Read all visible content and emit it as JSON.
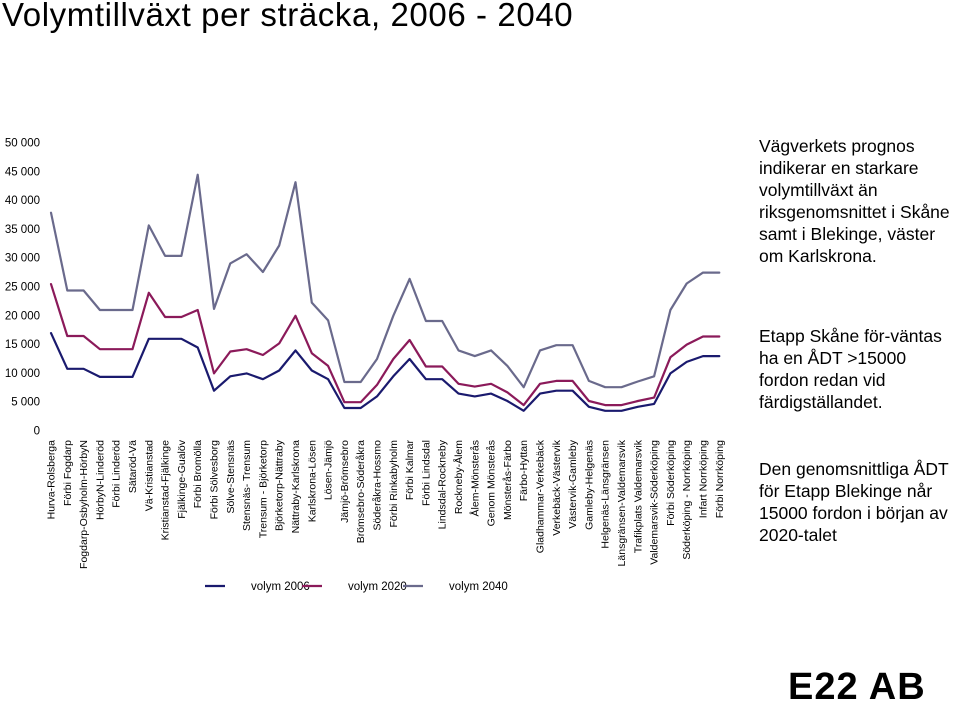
{
  "title": "Volymtillväxt per sträcka, 2006 - 2040",
  "notes": {
    "p1": "Vägverkets prognos indikerar en starkare volymtillväxt än riksgenomsnittet i Skåne samt i Blekinge, väster om Karlskrona.",
    "p2": "Etapp Skåne för-väntas ha en ÅDT >15000 fordon redan vid färdigställandet.",
    "p3": "Den genomsnittliga ÅDT för Etapp Blekinge når 15000 fordon i början av 2020-talet"
  },
  "brand": "E22 AB",
  "chart_data": {
    "type": "line",
    "title": "",
    "xlabel": "",
    "ylabel": "",
    "ylim": [
      0,
      50000
    ],
    "yticks": [
      0,
      5000,
      10000,
      15000,
      20000,
      25000,
      30000,
      35000,
      40000,
      45000,
      50000
    ],
    "ytick_labels": [
      "0",
      "5 000",
      "10 000",
      "15 000",
      "20 000",
      "25 000",
      "30 000",
      "35 000",
      "40 000",
      "45 000",
      "50 000"
    ],
    "grid": false,
    "legend": "bottom",
    "categories": [
      "Hurva-Rolsberga",
      "Förbi Fogdarp",
      "Fogdarp-Osbyholm-HörbyN",
      "HörbyN-Linderöd",
      "Förbi Linderöd",
      "Sätaröd-Vä",
      "Vä-Kristianstad",
      "Kristianstad-Fjälkinge",
      "Fjälkinge-Gualöv",
      "Förbi Bromölla",
      "Förbi Sölvesborg",
      "Sölve-Stensnäs",
      "Stensnäs- Trensum",
      "Trensum - Björketorp",
      "Björketorp-Nättraby",
      "Nättraby-Karlskrona",
      "Karlskrona-Lösen",
      "Lösen-Jämjö",
      "Jämjö-Brömsebro",
      "Brömsebro-Söderåkra",
      "Söderåkra-Hossmo",
      "Förbi Rinkabyholm",
      "Förbi Kalmar",
      "Förbi Lindsdal",
      "Lindsdal-Rockneby",
      "Rockneby-Ålem",
      "Ålem-Mönsterås",
      "Genom Mönsterås",
      "Mönsterås-Färbo",
      "Färbo-Hyttan",
      "Gladhammar-Verkebäck",
      "Verkebäck-Västervik",
      "Västervik-Gamleby",
      "Gamleby-Helgenäs",
      "Helgenäs-Länsgränsen",
      "Länsgränsen-Valdemarsvik",
      "Trafikplats Valdemarsvik",
      "Valdemarsvik-Söderköping",
      "Förbi Söderköping",
      "Söderköping - Norrköping",
      "Infart Norrköping",
      "Förbi Norrköping"
    ],
    "series": [
      {
        "name": "volym 2006",
        "color": "#1a1a6e",
        "values": [
          17000,
          10800,
          10800,
          9400,
          9400,
          9400,
          16000,
          16000,
          16000,
          14500,
          7000,
          9500,
          10000,
          9000,
          10500,
          14000,
          10500,
          9000,
          4000,
          4000,
          6000,
          9500,
          12500,
          9000,
          9000,
          6500,
          6000,
          6500,
          5200,
          3500,
          6500,
          7000,
          7000,
          4200,
          3500,
          3500,
          4200,
          4700,
          10000,
          12000,
          13000,
          13000
        ]
      },
      {
        "name": "volym 2020",
        "color": "#8b1a5a",
        "values": [
          25500,
          16500,
          16500,
          14200,
          14200,
          14200,
          24000,
          19800,
          19800,
          21000,
          10000,
          13800,
          14200,
          13200,
          15200,
          20000,
          13500,
          11300,
          5000,
          5000,
          8000,
          12500,
          15800,
          11200,
          11200,
          8200,
          7700,
          8200,
          6700,
          4500,
          8200,
          8700,
          8700,
          5200,
          4500,
          4500,
          5200,
          5800,
          12800,
          15000,
          16400,
          16400
        ]
      },
      {
        "name": "volym 2040",
        "color": "#6a6a8c",
        "values": [
          37900,
          24400,
          24400,
          21000,
          21000,
          21000,
          35700,
          30400,
          30400,
          44500,
          21200,
          29100,
          30700,
          27600,
          32200,
          43200,
          22300,
          19200,
          8500,
          8500,
          12500,
          20000,
          26400,
          19100,
          19100,
          14000,
          13000,
          14000,
          11300,
          7600,
          14000,
          14900,
          14900,
          8700,
          7600,
          7600,
          8600,
          9500,
          21000,
          25600,
          27500,
          27500
        ]
      }
    ]
  }
}
